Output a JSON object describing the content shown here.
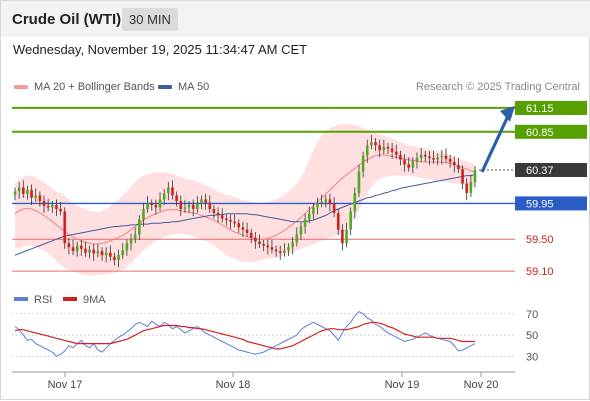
{
  "header": {
    "instrument": "Crude Oil (WTI)",
    "timeframe": "30 MIN"
  },
  "datetime": "Wednesday, November 19, 2025 11:34:47 AM CET",
  "legend": {
    "ma20_label": "MA 20 + Bollinger Bands",
    "ma50_label": "MA 50",
    "copyright": "Research © 2025 Trading Central"
  },
  "colors": {
    "resistance": "#56a100",
    "current": "#3a3a3a",
    "pivot": "#2a5cc6",
    "support": "#e8696b",
    "support_text": "#cc2222",
    "candle_up": "#50aa22",
    "candle_down": "#d21f1f",
    "bollinger_fill": "#ffd9d9",
    "ma20": "#f08080",
    "ma50": "#3d5e9f",
    "rsi": "#5b7fd6",
    "rsi_ma": "#d22020",
    "arrow": "#2e5fa8"
  },
  "chart_data": [
    {
      "type": "candlestick",
      "title": "Crude Oil (WTI)",
      "timeframe": "30 MIN",
      "x_ticks": [
        "Nov 17",
        "Nov 18",
        "Nov 19",
        "Nov 20"
      ],
      "ylim": [
        58.95,
        61.3
      ],
      "levels": [
        {
          "label": "61.15",
          "value": 61.15,
          "kind": "resistance"
        },
        {
          "label": "60.85",
          "value": 60.85,
          "kind": "resistance"
        },
        {
          "label": "60.37",
          "value": 60.37,
          "kind": "current"
        },
        {
          "label": "59.95",
          "value": 59.95,
          "kind": "pivot"
        },
        {
          "label": "59.50",
          "value": 59.5,
          "kind": "support"
        },
        {
          "label": "59.10",
          "value": 59.1,
          "kind": "support"
        }
      ],
      "close": [
        60.1,
        60.15,
        60.07,
        60.12,
        60.02,
        60.05,
        59.98,
        59.92,
        59.9,
        59.93,
        59.88,
        59.85,
        59.45,
        59.4,
        59.35,
        59.42,
        59.38,
        59.33,
        59.37,
        59.32,
        59.35,
        59.3,
        59.33,
        59.28,
        59.24,
        59.3,
        59.36,
        59.45,
        59.5,
        59.56,
        59.75,
        59.88,
        59.95,
        59.93,
        59.9,
        60.0,
        60.08,
        60.15,
        60.05,
        59.98,
        59.88,
        59.9,
        59.93,
        59.88,
        59.95,
        60.0,
        59.96,
        59.88,
        59.83,
        59.8,
        59.76,
        59.74,
        59.72,
        59.7,
        59.65,
        59.62,
        59.58,
        59.52,
        59.47,
        59.44,
        59.42,
        59.4,
        59.37,
        59.35,
        59.33,
        59.36,
        59.4,
        59.46,
        59.56,
        59.66,
        59.75,
        59.82,
        59.9,
        59.95,
        59.97,
        60.0,
        59.94,
        59.83,
        59.62,
        59.45,
        59.62,
        59.85,
        60.08,
        60.35,
        60.55,
        60.68,
        60.72,
        60.68,
        60.62,
        60.66,
        60.64,
        60.6,
        60.56,
        60.5,
        60.44,
        60.4,
        60.48,
        60.52,
        60.56,
        60.54,
        60.52,
        60.5,
        60.53,
        60.55,
        60.51,
        60.47,
        60.43,
        60.38,
        60.2,
        60.08,
        60.22,
        60.37
      ],
      "ma20": [
        59.82,
        59.86,
        59.88,
        59.89,
        59.88,
        59.86,
        59.83,
        59.8,
        59.76,
        59.72,
        59.68,
        59.64,
        59.6,
        59.56,
        59.53,
        59.5,
        59.48,
        59.46,
        59.45,
        59.44,
        59.44,
        59.45,
        59.46,
        59.48,
        59.5,
        59.52,
        59.55,
        59.58,
        59.62,
        59.66,
        59.7,
        59.74,
        59.77,
        59.8,
        59.82,
        59.84,
        59.86,
        59.87,
        59.87,
        59.87,
        59.86,
        59.85,
        59.84,
        59.83,
        59.82,
        59.8,
        59.78,
        59.76,
        59.74,
        59.71,
        59.68,
        59.65,
        59.62,
        59.59,
        59.57,
        59.55,
        59.53,
        59.52,
        59.51,
        59.5,
        59.5,
        59.51,
        59.53,
        59.55,
        59.58,
        59.61,
        59.65,
        59.69,
        59.73,
        59.77,
        59.82,
        59.87,
        59.92,
        59.97,
        60.02,
        60.07,
        60.12,
        60.17,
        60.22,
        60.27,
        60.31,
        60.35,
        60.39,
        60.43,
        60.47,
        60.5,
        60.53,
        60.55,
        60.56,
        60.56,
        60.55,
        60.54,
        60.53,
        60.52,
        60.51,
        60.5,
        60.49,
        60.48,
        60.47,
        60.47,
        60.47,
        60.47,
        60.47,
        60.47,
        60.46,
        60.45,
        60.44,
        60.42,
        60.4,
        60.38,
        60.36,
        60.34
      ],
      "upper_band": [
        60.2,
        60.25,
        60.28,
        60.3,
        60.3,
        60.28,
        60.25,
        60.22,
        60.18,
        60.14,
        60.1,
        60.08,
        60.05,
        60.0,
        59.95,
        59.92,
        59.9,
        59.88,
        59.86,
        59.85,
        59.84,
        59.85,
        59.88,
        59.92,
        59.96,
        60.0,
        60.05,
        60.1,
        60.16,
        60.22,
        60.27,
        60.3,
        60.32,
        60.33,
        60.34,
        60.34,
        60.34,
        60.33,
        60.32,
        60.3,
        60.28,
        60.26,
        60.25,
        60.24,
        60.22,
        60.2,
        60.18,
        60.15,
        60.12,
        60.1,
        60.08,
        60.06,
        60.05,
        60.03,
        60.01,
        59.99,
        59.98,
        59.97,
        59.96,
        59.95,
        59.95,
        59.96,
        59.98,
        60.0,
        60.03,
        60.06,
        60.1,
        60.14,
        60.2,
        60.28,
        60.38,
        60.5,
        60.62,
        60.72,
        60.8,
        60.86,
        60.9,
        60.92,
        60.94,
        60.95,
        60.95,
        60.94,
        60.93,
        60.92,
        60.9,
        60.88,
        60.86,
        60.84,
        60.82,
        60.8,
        60.78,
        60.76,
        60.74,
        60.72,
        60.7,
        60.68,
        60.67,
        60.66,
        60.65,
        60.64,
        60.63,
        60.62,
        60.61,
        60.6,
        60.58,
        60.56,
        60.54,
        60.52,
        60.5,
        60.48,
        60.46,
        60.44
      ],
      "lower_band": [
        59.4,
        59.38,
        59.4,
        59.42,
        59.42,
        59.4,
        59.38,
        59.36,
        59.32,
        59.28,
        59.22,
        59.18,
        59.14,
        59.12,
        59.1,
        59.08,
        59.06,
        59.05,
        59.04,
        59.04,
        59.05,
        59.06,
        59.06,
        59.07,
        59.08,
        59.1,
        59.12,
        59.15,
        59.2,
        59.25,
        59.3,
        59.36,
        59.4,
        59.44,
        59.48,
        59.5,
        59.53,
        59.55,
        59.56,
        59.57,
        59.57,
        59.56,
        59.55,
        59.54,
        59.52,
        59.5,
        59.48,
        59.45,
        59.42,
        59.38,
        59.34,
        59.3,
        59.27,
        59.25,
        59.23,
        59.22,
        59.21,
        59.21,
        59.22,
        59.23,
        59.24,
        59.25,
        59.26,
        59.27,
        59.28,
        59.3,
        59.32,
        59.34,
        59.36,
        59.38,
        59.4,
        59.42,
        59.44,
        59.46,
        59.48,
        59.5,
        59.52,
        59.54,
        59.56,
        59.58,
        59.62,
        59.68,
        59.76,
        59.86,
        59.98,
        60.08,
        60.16,
        60.22,
        60.26,
        60.28,
        60.29,
        60.3,
        60.3,
        60.3,
        60.3,
        60.3,
        60.29,
        60.28,
        60.27,
        60.26,
        60.25,
        60.24,
        60.23,
        60.22,
        60.22,
        60.21,
        60.2,
        60.2,
        60.19,
        60.18,
        60.17,
        60.16
      ],
      "ma50": [
        59.3,
        59.32,
        59.34,
        59.36,
        59.38,
        59.4,
        59.42,
        59.44,
        59.46,
        59.48,
        59.5,
        59.52,
        59.54,
        59.55,
        59.56,
        59.57,
        59.58,
        59.59,
        59.6,
        59.61,
        59.62,
        59.63,
        59.64,
        59.65,
        59.66,
        59.66,
        59.67,
        59.67,
        59.68,
        59.68,
        59.69,
        59.69,
        59.69,
        59.7,
        59.7,
        59.7,
        59.71,
        59.71,
        59.72,
        59.72,
        59.73,
        59.74,
        59.75,
        59.76,
        59.77,
        59.78,
        59.79,
        59.8,
        59.8,
        59.81,
        59.81,
        59.82,
        59.82,
        59.82,
        59.82,
        59.82,
        59.82,
        59.81,
        59.81,
        59.8,
        59.79,
        59.78,
        59.77,
        59.76,
        59.75,
        59.74,
        59.73,
        59.72,
        59.72,
        59.72,
        59.72,
        59.73,
        59.74,
        59.76,
        59.78,
        59.8,
        59.83,
        59.86,
        59.88,
        59.9,
        59.92,
        59.94,
        59.96,
        59.98,
        60.0,
        60.02,
        60.03,
        60.05,
        60.06,
        60.08,
        60.09,
        60.11,
        60.12,
        60.14,
        60.15,
        60.16,
        60.17,
        60.18,
        60.19,
        60.2,
        60.21,
        60.22,
        60.23,
        60.24,
        60.25,
        60.26,
        60.27,
        60.28,
        60.29,
        60.3,
        60.3,
        60.31
      ],
      "projection": {
        "from": 60.37,
        "to": 61.15
      }
    },
    {
      "type": "line",
      "title": "RSI",
      "series": [
        {
          "name": "RSI",
          "values": [
            58,
            55,
            50,
            45,
            46,
            42,
            40,
            38,
            36,
            34,
            30,
            32,
            35,
            40,
            38,
            42,
            45,
            40,
            38,
            42,
            36,
            34,
            38,
            42,
            45,
            48,
            50,
            53,
            56,
            60,
            62,
            60,
            58,
            63,
            60,
            58,
            62,
            60,
            56,
            58,
            55,
            52,
            54,
            56,
            58,
            55,
            52,
            50,
            48,
            46,
            44,
            42,
            40,
            38,
            36,
            35,
            34,
            33,
            32,
            33,
            34,
            36,
            38,
            40,
            42,
            44,
            46,
            48,
            50,
            55,
            58,
            60,
            62,
            60,
            58,
            56,
            54,
            50,
            45,
            52,
            58,
            62,
            68,
            72,
            70,
            66,
            64,
            60,
            58,
            55,
            52,
            50,
            48,
            46,
            44,
            45,
            46,
            48,
            50,
            52,
            50,
            48,
            47,
            46,
            45,
            44,
            40,
            35,
            36,
            38,
            40,
            42
          ]
        },
        {
          "name": "9MA",
          "values": [
            54,
            55,
            55,
            54,
            53,
            52,
            51,
            50,
            49,
            48,
            47,
            46,
            45,
            44,
            43,
            42,
            42,
            42,
            42,
            42,
            42,
            42,
            42,
            42,
            43,
            44,
            45,
            46,
            48,
            50,
            52,
            54,
            55,
            56,
            57,
            58,
            59,
            59,
            59,
            59,
            58,
            58,
            57,
            57,
            56,
            56,
            55,
            54,
            53,
            52,
            51,
            50,
            49,
            48,
            47,
            46,
            44,
            43,
            42,
            41,
            40,
            39,
            38,
            37,
            37,
            38,
            39,
            40,
            42,
            44,
            46,
            48,
            50,
            52,
            54,
            55,
            56,
            56,
            55,
            55,
            55,
            56,
            57,
            58,
            60,
            61,
            62,
            62,
            61,
            60,
            58,
            57,
            55,
            53,
            51,
            50,
            49,
            48,
            48,
            48,
            48,
            48,
            47,
            47,
            47,
            47,
            46,
            45,
            44,
            44,
            44,
            44
          ]
        }
      ],
      "levels": [
        "70",
        "50",
        "30"
      ],
      "ylim": [
        20,
        82
      ]
    }
  ]
}
